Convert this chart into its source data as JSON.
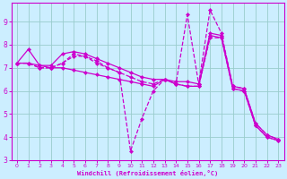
{
  "xlabel": "Windchill (Refroidissement éolien,°C)",
  "bg_color": "#cceeff",
  "line_color": "#cc00cc",
  "grid_color": "#99cccc",
  "xlim": [
    -0.5,
    23.5
  ],
  "ylim": [
    3.0,
    9.8
  ],
  "xticks": [
    0,
    1,
    2,
    3,
    4,
    5,
    6,
    7,
    8,
    9,
    10,
    11,
    12,
    13,
    14,
    15,
    16,
    17,
    18,
    19,
    20,
    21,
    22,
    23
  ],
  "yticks": [
    3,
    4,
    5,
    6,
    7,
    8,
    9
  ],
  "lines": [
    {
      "x": [
        0,
        1,
        2,
        3,
        4,
        5,
        6,
        7,
        8,
        9,
        10,
        11,
        12,
        13,
        14,
        15,
        16,
        17,
        18,
        19,
        20,
        21,
        22,
        23
      ],
      "y": [
        7.2,
        7.8,
        7.1,
        7.1,
        7.6,
        7.7,
        7.6,
        7.4,
        7.2,
        7.0,
        6.8,
        6.6,
        6.5,
        6.5,
        6.4,
        6.4,
        6.3,
        8.5,
        8.4,
        6.2,
        6.1,
        4.6,
        4.1,
        3.9
      ],
      "linestyle": "-"
    },
    {
      "x": [
        0,
        1,
        2,
        3,
        4,
        5,
        6,
        7,
        8,
        9,
        10,
        11,
        12,
        13,
        14,
        15,
        16,
        17,
        18,
        19,
        20,
        21,
        22,
        23
      ],
      "y": [
        7.2,
        7.2,
        7.0,
        7.0,
        7.2,
        7.5,
        7.5,
        7.2,
        7.0,
        6.8,
        3.4,
        4.8,
        6.0,
        6.5,
        6.3,
        9.3,
        6.3,
        9.5,
        8.5,
        6.2,
        6.1,
        4.6,
        4.1,
        3.9
      ],
      "linestyle": "--"
    },
    {
      "x": [
        0,
        1,
        2,
        3,
        4,
        5,
        6,
        7,
        8,
        9,
        10,
        11,
        12,
        13,
        14,
        15,
        16,
        17,
        18,
        19,
        20,
        21,
        22,
        23
      ],
      "y": [
        7.2,
        7.2,
        7.1,
        7.0,
        7.0,
        6.9,
        6.8,
        6.7,
        6.6,
        6.5,
        6.4,
        6.3,
        6.2,
        6.5,
        6.3,
        6.2,
        6.2,
        8.4,
        8.3,
        6.1,
        6.0,
        4.5,
        4.0,
        3.85
      ],
      "linestyle": "-"
    },
    {
      "x": [
        0,
        1,
        2,
        3,
        4,
        5,
        6,
        7,
        8,
        9,
        10,
        11,
        12,
        13,
        14,
        15,
        16,
        17,
        18,
        19,
        20,
        21,
        22,
        23
      ],
      "y": [
        7.2,
        7.2,
        7.0,
        7.0,
        7.2,
        7.6,
        7.5,
        7.3,
        7.0,
        6.8,
        6.6,
        6.4,
        6.3,
        6.5,
        6.3,
        6.2,
        6.2,
        8.3,
        8.3,
        6.1,
        6.0,
        4.5,
        4.0,
        3.85
      ],
      "linestyle": "--"
    }
  ]
}
